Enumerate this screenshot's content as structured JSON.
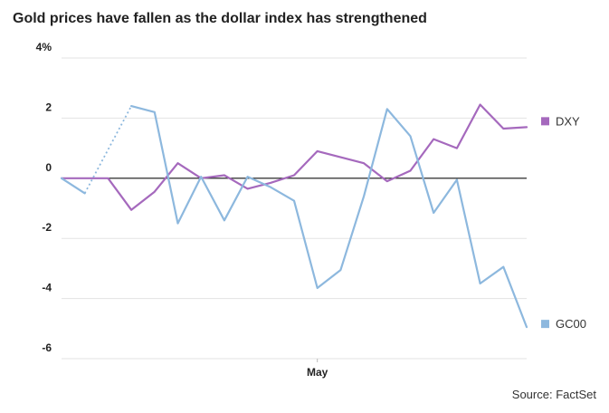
{
  "chart_data": {
    "type": "line",
    "title": "Gold prices have fallen as the dollar index has strengthened",
    "source": "Source: FactSet",
    "ylim": [
      -6,
      4
    ],
    "yticks": [
      {
        "value": 4,
        "label": "4%"
      },
      {
        "value": 2,
        "label": "2"
      },
      {
        "value": 0,
        "label": "0"
      },
      {
        "value": -2,
        "label": "-2"
      },
      {
        "value": -4,
        "label": "-4"
      },
      {
        "value": -6,
        "label": "-6"
      }
    ],
    "xlim": [
      0,
      20
    ],
    "xticks": [
      {
        "value": 11,
        "label": "May"
      }
    ],
    "grid": true,
    "series": [
      {
        "name": "DXY",
        "color": "#a569bd",
        "x": [
          0,
          1,
          2,
          3,
          4,
          5,
          6,
          7,
          8,
          9,
          10,
          11,
          12,
          13,
          14,
          15,
          16,
          17,
          18,
          19,
          20
        ],
        "values": [
          0.0,
          0.0,
          0.0,
          -1.05,
          -0.45,
          0.5,
          0.0,
          0.1,
          -0.35,
          -0.15,
          0.1,
          0.9,
          0.7,
          0.5,
          -0.1,
          0.25,
          1.3,
          1.0,
          2.45,
          1.65,
          1.7
        ]
      },
      {
        "name": "GC00",
        "color": "#8db8de",
        "x": [
          0,
          1,
          3,
          4,
          5,
          6,
          7,
          8,
          9,
          10,
          11,
          12,
          13,
          14,
          15,
          16,
          17,
          18,
          19,
          20
        ],
        "values": [
          0.0,
          -0.5,
          2.4,
          2.2,
          -1.5,
          0.05,
          -1.4,
          0.05,
          -0.3,
          -0.75,
          -3.65,
          -3.05,
          -0.6,
          2.3,
          1.4,
          -1.15,
          -0.05,
          -3.5,
          -2.95,
          -4.95
        ],
        "gap": {
          "from_x": 1,
          "to_x": 3,
          "from_value": -0.5,
          "to_value": 2.4
        }
      }
    ]
  }
}
